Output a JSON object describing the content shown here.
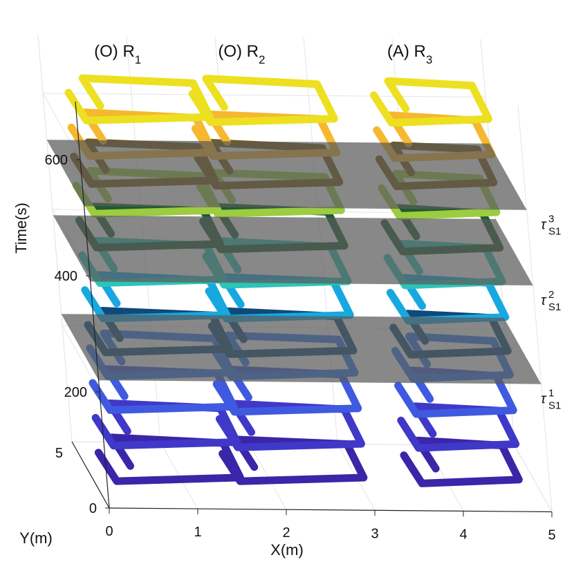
{
  "chart_data": {
    "type": "line",
    "subtype": "3d-trajectory",
    "title": "",
    "xlabel": "X(m)",
    "ylabel": "Y(m)",
    "zlabel": "Time(s)",
    "xlim": [
      0,
      5
    ],
    "ylim": [
      0,
      6
    ],
    "zlim": [
      0,
      700
    ],
    "x_ticks": [
      "0",
      "1",
      "2",
      "3",
      "4",
      "5"
    ],
    "y_ticks": [
      "5"
    ],
    "z_ticks": [
      "0",
      "200",
      "400",
      "600"
    ],
    "grid": true,
    "robots": [
      {
        "label": "(O) R",
        "sub": "1",
        "x_center": 0.9
      },
      {
        "label": "(O) R",
        "sub": "2",
        "x_center": 2.3
      },
      {
        "label": "(A) R",
        "sub": "3",
        "x_center": 4.2
      }
    ],
    "planes": [
      {
        "label": "τ",
        "sup": "1",
        "sub": "S1",
        "time": 220
      },
      {
        "label": "τ",
        "sup": "2",
        "sub": "S1",
        "time": 390
      },
      {
        "label": "τ",
        "sup": "3",
        "sub": "S1",
        "time": 520
      }
    ],
    "plane_color": "#5a5a5a",
    "loops": [
      {
        "t": 10,
        "color": "#3a26a8"
      },
      {
        "t": 70,
        "color": "#4038c8"
      },
      {
        "t": 130,
        "color": "#3f5ae0"
      },
      {
        "t": 190,
        "color": "#2f7af0"
      },
      {
        "t": 230,
        "color": "#0e4a7a"
      },
      {
        "t": 290,
        "color": "#18a8e0"
      },
      {
        "t": 350,
        "color": "#2ec4b8"
      },
      {
        "t": 410,
        "color": "#1f5a30"
      },
      {
        "t": 470,
        "color": "#9ccc40"
      },
      {
        "t": 520,
        "color": "#7a5a10"
      },
      {
        "t": 570,
        "color": "#f5b830"
      },
      {
        "t": 630,
        "color": "#ece020"
      }
    ]
  }
}
